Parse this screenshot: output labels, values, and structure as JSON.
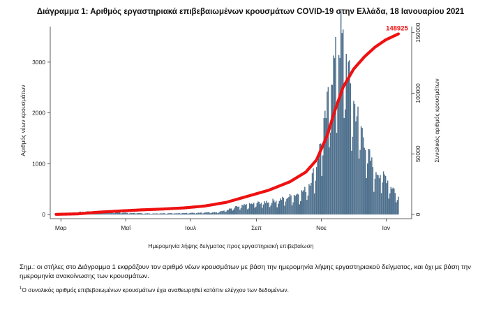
{
  "chart_data": {
    "type": "bar",
    "title": "Διάγραμμα 1: Αριθμός εργαστηριακά επιβεβαιωμένων κρουσμάτων COVID-19 στην Ελλάδα, 18 Ιανουαρίου 2021",
    "xlabel": "Ημερομηνία λήψης δείγματος προς εργαστηριακή επιβεβαίωση",
    "ylabel": "Αριθμός νέων κρουσμάτων",
    "y2label": "Συνολικός αριθμός κρουσμάτων",
    "x_ticks": [
      "Μαρ",
      "Μαΐ",
      "Ιουλ",
      "Σεπ",
      "Νοε",
      "Ιαν"
    ],
    "y_ticks": [
      "0",
      "1000",
      "2000",
      "3000"
    ],
    "y2_ticks": [
      "0",
      "50000",
      "100000",
      "150000"
    ],
    "ylim": [
      0,
      3700
    ],
    "y2lim": [
      0,
      155000
    ],
    "final_cumulative_label": "148925",
    "grid": false,
    "series": [
      {
        "type": "bar",
        "color": "#4d6f8c",
        "knots": [
          [
            0,
            15
          ],
          [
            20,
            45
          ],
          [
            35,
            70
          ],
          [
            50,
            50
          ],
          [
            70,
            30
          ],
          [
            90,
            20
          ],
          [
            110,
            25
          ],
          [
            130,
            35
          ],
          [
            150,
            45
          ],
          [
            160,
            85
          ],
          [
            170,
            150
          ],
          [
            180,
            190
          ],
          [
            190,
            230
          ],
          [
            200,
            260
          ],
          [
            210,
            290
          ],
          [
            220,
            360
          ],
          [
            230,
            430
          ],
          [
            235,
            500
          ],
          [
            240,
            700
          ],
          [
            245,
            1000
          ],
          [
            250,
            1500
          ],
          [
            253,
            1800
          ],
          [
            256,
            2300
          ],
          [
            259,
            2800
          ],
          [
            262,
            3000
          ],
          [
            265,
            3200
          ],
          [
            268,
            3550
          ],
          [
            271,
            3250
          ],
          [
            274,
            3000
          ],
          [
            277,
            2500
          ],
          [
            280,
            2200
          ],
          [
            283,
            2000
          ],
          [
            286,
            1800
          ],
          [
            290,
            1500
          ],
          [
            294,
            1200
          ],
          [
            298,
            950
          ],
          [
            302,
            850
          ],
          [
            306,
            800
          ],
          [
            310,
            750
          ],
          [
            314,
            600
          ],
          [
            318,
            500
          ],
          [
            322,
            350
          ]
        ]
      },
      {
        "type": "line",
        "color": "#ee1111",
        "knots": [
          [
            0,
            100
          ],
          [
            20,
            500
          ],
          [
            40,
            1900
          ],
          [
            60,
            2900
          ],
          [
            80,
            3800
          ],
          [
            100,
            4500
          ],
          [
            120,
            5400
          ],
          [
            140,
            7000
          ],
          [
            160,
            10000
          ],
          [
            180,
            15000
          ],
          [
            200,
            20000
          ],
          [
            220,
            27000
          ],
          [
            235,
            35000
          ],
          [
            245,
            45000
          ],
          [
            255,
            65000
          ],
          [
            262,
            85000
          ],
          [
            270,
            105000
          ],
          [
            280,
            120000
          ],
          [
            290,
            130000
          ],
          [
            300,
            138000
          ],
          [
            310,
            144000
          ],
          [
            322,
            148925
          ]
        ]
      }
    ]
  },
  "note": "Σημ.: οι στήλες στο Διάγραμμα 1 εκφράζουν τον αριθμό νέων κρουσμάτων με βάση την ημερομηνία λήψης εργαστηριακού δείγματος, και όχι με βάση την ημερομηνία ανακοίνωσης των κρουσμάτων.",
  "footnote_mark": "1",
  "footnote": "Ο συνολικός αριθμός επιβεβαιωμένων κρουσμάτων έχει αναθεωρηθεί κατόπιν ελέγχου των δεδομένων."
}
